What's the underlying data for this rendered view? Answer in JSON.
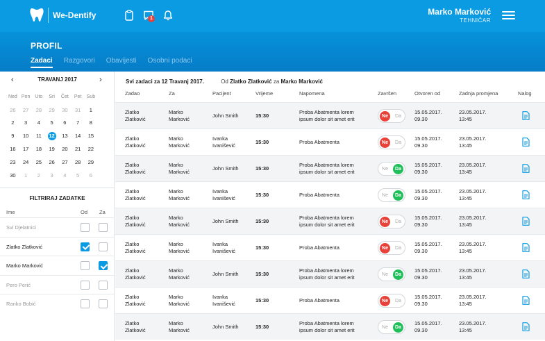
{
  "app": {
    "brand": "We-Dentify",
    "notification_count": "1",
    "user_name": "Marko Marković",
    "user_role": "TEHNIČAR"
  },
  "profile": {
    "title": "PROFIL",
    "tabs": [
      {
        "label": "Zadaci",
        "active": true
      },
      {
        "label": "Razgovori",
        "active": false
      },
      {
        "label": "Obavijesti",
        "active": false
      },
      {
        "label": "Osobni podaci",
        "active": false
      }
    ]
  },
  "calendar": {
    "month_label": "TRAVANJ 2017",
    "weekdays": [
      "Ned",
      "Pon",
      "Uto",
      "Sri",
      "Čet",
      "Pet",
      "Sub"
    ],
    "weeks": [
      [
        "26",
        "27",
        "28",
        "29",
        "30",
        "31",
        "1"
      ],
      [
        "2",
        "3",
        "4",
        "5",
        "6",
        "7",
        "8"
      ],
      [
        "9",
        "10",
        "11",
        "12",
        "13",
        "14",
        "15"
      ],
      [
        "16",
        "17",
        "18",
        "19",
        "20",
        "21",
        "22"
      ],
      [
        "23",
        "24",
        "25",
        "26",
        "27",
        "28",
        "29"
      ],
      [
        "30",
        "1",
        "2",
        "3",
        "4",
        "5",
        "6"
      ]
    ],
    "selected_day": "12"
  },
  "filter": {
    "title": "FILTRIRAJ ZADATKE",
    "col_name": "Ime",
    "col_from": "Od",
    "col_to": "Za",
    "rows": [
      {
        "name": "Svi Djelatnici",
        "muted": true,
        "od": false,
        "za": false
      },
      {
        "name": "Zlatko Zlatković",
        "muted": false,
        "od": true,
        "za": false
      },
      {
        "name": "Marko Marković",
        "muted": false,
        "od": false,
        "za": true
      },
      {
        "name": "Pero Perić",
        "muted": true,
        "od": false,
        "za": false
      },
      {
        "name": "Ranko Bobić",
        "muted": true,
        "od": false,
        "za": false
      }
    ]
  },
  "summary": {
    "text": "Svi zadaci za 12 Travanj 2017.",
    "from_label": "Od",
    "from_value": "Zlatko Zlatković",
    "to_label": "za",
    "to_value": "Marko Marković"
  },
  "table": {
    "headers": [
      "Zadao",
      "Za",
      "Pacijent",
      "Vrijeme",
      "Napomena",
      "Završen",
      "Otvoren od",
      "Zadnja promjena",
      "Nalog"
    ],
    "toggle_no": "Ne",
    "toggle_yes": "Da",
    "rows": [
      {
        "zadao": [
          "Zlatko",
          "Zlatković"
        ],
        "za": [
          "Marko",
          "Marković"
        ],
        "pacijent": [
          "John Smith"
        ],
        "vrijeme": "15:30",
        "napomena": [
          "Proba Abatmenta lorem",
          "ipsum dolor sit amet erit"
        ],
        "zavrsen": false,
        "otvoren": [
          "15.05.2017.",
          "09.30"
        ],
        "promjena": [
          "23.05.2017.",
          "13:45"
        ]
      },
      {
        "zadao": [
          "Zlatko",
          "Zlatković"
        ],
        "za": [
          "Marko",
          "Marković"
        ],
        "pacijent": [
          "Ivanka",
          "Ivanišević"
        ],
        "vrijeme": "15:30",
        "napomena": [
          "Proba Abatmenta"
        ],
        "zavrsen": false,
        "otvoren": [
          "15.05.2017.",
          "09.30"
        ],
        "promjena": [
          "23.05.2017.",
          "13:45"
        ]
      },
      {
        "zadao": [
          "Zlatko",
          "Zlatković"
        ],
        "za": [
          "Marko",
          "Marković"
        ],
        "pacijent": [
          "John Smith"
        ],
        "vrijeme": "15:30",
        "napomena": [
          "Proba Abatmenta lorem",
          "ipsum dolor sit amet erit"
        ],
        "zavrsen": true,
        "otvoren": [
          "15.05.2017.",
          "09.30"
        ],
        "promjena": [
          "23.05.2017.",
          "13:45"
        ]
      },
      {
        "zadao": [
          "Zlatko",
          "Zlatković"
        ],
        "za": [
          "Marko",
          "Marković"
        ],
        "pacijent": [
          "Ivanka",
          "Ivanišević"
        ],
        "vrijeme": "15:30",
        "napomena": [
          "Proba Abatmenta"
        ],
        "zavrsen": true,
        "otvoren": [
          "15.05.2017.",
          "09.30"
        ],
        "promjena": [
          "23.05.2017.",
          "13:45"
        ]
      },
      {
        "zadao": [
          "Zlatko",
          "Zlatković"
        ],
        "za": [
          "Marko",
          "Marković"
        ],
        "pacijent": [
          "John Smith"
        ],
        "vrijeme": "15:30",
        "napomena": [
          "Proba Abatmenta lorem",
          "ipsum dolor sit amet erit"
        ],
        "zavrsen": false,
        "otvoren": [
          "15.05.2017.",
          "09.30"
        ],
        "promjena": [
          "23.05.2017.",
          "13:45"
        ]
      },
      {
        "zadao": [
          "Zlatko",
          "Zlatković"
        ],
        "za": [
          "Marko",
          "Marković"
        ],
        "pacijent": [
          "Ivanka",
          "Ivanišević"
        ],
        "vrijeme": "15:30",
        "napomena": [
          "Proba Abatmenta"
        ],
        "zavrsen": false,
        "otvoren": [
          "15.05.2017.",
          "09.30"
        ],
        "promjena": [
          "23.05.2017.",
          "13:45"
        ]
      },
      {
        "zadao": [
          "Zlatko",
          "Zlatković"
        ],
        "za": [
          "Marko",
          "Marković"
        ],
        "pacijent": [
          "John Smith"
        ],
        "vrijeme": "15:30",
        "napomena": [
          "Proba Abatmenta lorem",
          "ipsum dolor sit amet erit"
        ],
        "zavrsen": true,
        "otvoren": [
          "15.05.2017.",
          "09.30"
        ],
        "promjena": [
          "23.05.2017.",
          "13:45"
        ]
      },
      {
        "zadao": [
          "Zlatko",
          "Zlatković"
        ],
        "za": [
          "Marko",
          "Marković"
        ],
        "pacijent": [
          "Ivanka",
          "Ivanišević"
        ],
        "vrijeme": "15:30",
        "napomena": [
          "Proba Abatmenta"
        ],
        "zavrsen": false,
        "otvoren": [
          "15.05.2017.",
          "09.30"
        ],
        "promjena": [
          "23.05.2017.",
          "13:45"
        ]
      },
      {
        "zadao": [
          "Zlatko",
          "Zlatković"
        ],
        "za": [
          "Marko",
          "Marković"
        ],
        "pacijent": [
          "John Smith"
        ],
        "vrijeme": "15:30",
        "napomena": [
          "Proba Abatmenta lorem",
          "ipsum dolor sit amet erit"
        ],
        "zavrsen": true,
        "otvoren": [
          "15.05.2017.",
          "09.30"
        ],
        "promjena": [
          "23.05.2017.",
          "13:45"
        ]
      }
    ]
  },
  "colors": {
    "primary": "#0a9be3",
    "no": "#e8413a",
    "yes": "#1fbf5a"
  }
}
